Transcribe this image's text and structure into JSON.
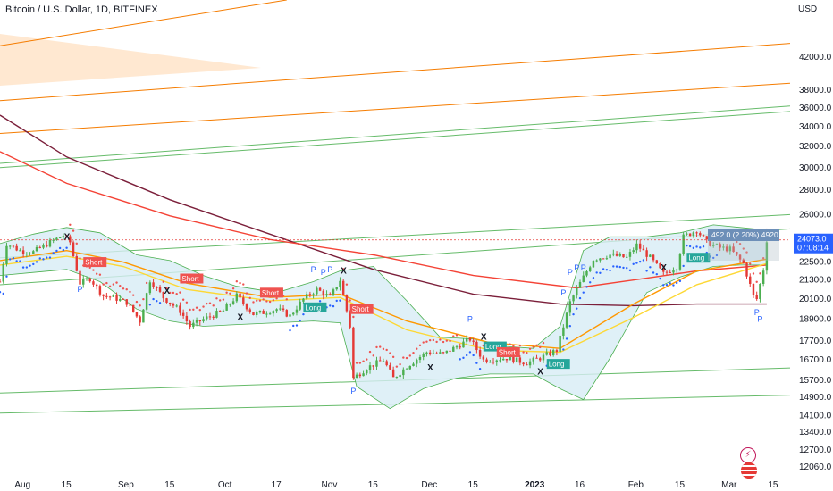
{
  "header": {
    "symbol": "Bitcoin / U.S. Dollar, 1D, BITFINEX",
    "currency": "USD"
  },
  "price_tag": {
    "price": "24073.0",
    "countdown": "07:08:14",
    "color": "#2962ff"
  },
  "stat_box": {
    "text": "492.0 (2.20%) 4920"
  },
  "colors": {
    "up": "#26a69a",
    "up_bright": "#4caf50",
    "down": "#e53935",
    "bb_fill": "#d7ecf5",
    "bb_line": "#4caf50",
    "short_box": "#ef5350",
    "long_box": "#26a69a",
    "psar_down": "#ef5350",
    "psar_up": "#2962ff",
    "ma_dark": "#7b1f3a",
    "ma_red": "#f44336",
    "ma_orange": "#ff9800",
    "ma_yellow": "#fdd835",
    "trend_orange": "#f57c00",
    "trend_green": "#66bb6a"
  },
  "icons": [
    "lightning-icon",
    "us-flag-icon"
  ],
  "chart_data": {
    "type": "candlestick",
    "scale": "log",
    "ylim": [
      11700,
      50000
    ],
    "y_ticks": [
      "42000.0",
      "38000.0",
      "36000.0",
      "34000.0",
      "32000.0",
      "30000.0",
      "28000.0",
      "26000.0",
      "24000.0",
      "22500.0",
      "21300.0",
      "20100.0",
      "18900.0",
      "17700.0",
      "16700.0",
      "15700.0",
      "14900.0",
      "14100.0",
      "13400.0",
      "12700.0",
      "12060.0"
    ],
    "x_ticks": [
      {
        "label": "Aug",
        "date": "2022-08-01"
      },
      {
        "label": "15",
        "date": "2022-08-15"
      },
      {
        "label": "Sep",
        "date": "2022-09-01"
      },
      {
        "label": "15",
        "date": "2022-09-15"
      },
      {
        "label": "Oct",
        "date": "2022-10-01"
      },
      {
        "label": "17",
        "date": "2022-10-17"
      },
      {
        "label": "Nov",
        "date": "2022-11-01"
      },
      {
        "label": "15",
        "date": "2022-11-15"
      },
      {
        "label": "Dec",
        "date": "2022-12-01"
      },
      {
        "label": "15",
        "date": "2022-12-15"
      },
      {
        "label": "2023",
        "date": "2023-01-01",
        "bold": true
      },
      {
        "label": "16",
        "date": "2023-01-16"
      },
      {
        "label": "Feb",
        "date": "2023-02-01"
      },
      {
        "label": "15",
        "date": "2023-02-15"
      },
      {
        "label": "Mar",
        "date": "2023-03-01"
      },
      {
        "label": "15",
        "date": "2023-03-15"
      }
    ],
    "x_range": [
      "2022-07-26",
      "2023-03-20"
    ],
    "close_path": [
      [
        "2022-07-26",
        21200
      ],
      [
        "2022-07-28",
        23800
      ],
      [
        "2022-08-01",
        23300
      ],
      [
        "2022-08-05",
        23200
      ],
      [
        "2022-08-10",
        23900
      ],
      [
        "2022-08-14",
        24400
      ],
      [
        "2022-08-16",
        23900
      ],
      [
        "2022-08-19",
        21100
      ],
      [
        "2022-08-22",
        21400
      ],
      [
        "2022-08-26",
        20300
      ],
      [
        "2022-08-29",
        20200
      ],
      [
        "2022-09-02",
        19900
      ],
      [
        "2022-09-06",
        18800
      ],
      [
        "2022-09-09",
        21300
      ],
      [
        "2022-09-13",
        20200
      ],
      [
        "2022-09-18",
        19400
      ],
      [
        "2022-09-21",
        18500
      ],
      [
        "2022-09-25",
        18900
      ],
      [
        "2022-10-01",
        19400
      ],
      [
        "2022-10-05",
        20300
      ],
      [
        "2022-10-10",
        19200
      ],
      [
        "2022-10-13",
        19300
      ],
      [
        "2022-10-17",
        19500
      ],
      [
        "2022-10-21",
        19100
      ],
      [
        "2022-10-25",
        20100
      ],
      [
        "2022-10-29",
        20700
      ],
      [
        "2022-11-02",
        20200
      ],
      [
        "2022-11-05",
        21300
      ],
      [
        "2022-11-08",
        18500
      ],
      [
        "2022-11-09",
        15800
      ],
      [
        "2022-11-13",
        16300
      ],
      [
        "2022-11-18",
        16700
      ],
      [
        "2022-11-21",
        15800
      ],
      [
        "2022-11-26",
        16500
      ],
      [
        "2022-12-01",
        17100
      ],
      [
        "2022-12-06",
        17000
      ],
      [
        "2022-12-14",
        17800
      ],
      [
        "2022-12-18",
        16700
      ],
      [
        "2022-12-25",
        16800
      ],
      [
        "2022-12-31",
        16550
      ],
      [
        "2023-01-04",
        16800
      ],
      [
        "2023-01-09",
        17200
      ],
      [
        "2023-01-13",
        19900
      ],
      [
        "2023-01-16",
        21100
      ],
      [
        "2023-01-20",
        22700
      ],
      [
        "2023-01-25",
        23000
      ],
      [
        "2023-01-30",
        22800
      ],
      [
        "2023-02-02",
        23700
      ],
      [
        "2023-02-06",
        22800
      ],
      [
        "2023-02-10",
        21700
      ],
      [
        "2023-02-14",
        22200
      ],
      [
        "2023-02-16",
        24300
      ],
      [
        "2023-02-20",
        24800
      ],
      [
        "2023-02-23",
        23900
      ],
      [
        "2023-02-27",
        23500
      ],
      [
        "2023-03-02",
        23400
      ],
      [
        "2023-03-06",
        22400
      ],
      [
        "2023-03-09",
        20300
      ],
      [
        "2023-03-10",
        20100
      ],
      [
        "2023-03-12",
        22000
      ],
      [
        "2023-03-13",
        24073
      ]
    ],
    "bollinger": {
      "upper": [
        [
          "2022-07-26",
          23800
        ],
        [
          "2022-08-05",
          24500
        ],
        [
          "2022-08-15",
          25000
        ],
        [
          "2022-08-25",
          24600
        ],
        [
          "2022-09-05",
          23000
        ],
        [
          "2022-09-15",
          22600
        ],
        [
          "2022-09-25",
          21600
        ],
        [
          "2022-10-05",
          20900
        ],
        [
          "2022-10-17",
          20500
        ],
        [
          "2022-10-28",
          21200
        ],
        [
          "2022-11-05",
          21900
        ],
        [
          "2022-11-15",
          22200
        ],
        [
          "2022-11-25",
          20000
        ],
        [
          "2022-12-05",
          17900
        ],
        [
          "2022-12-15",
          17800
        ],
        [
          "2022-12-25",
          17400
        ],
        [
          "2023-01-02",
          17300
        ],
        [
          "2023-01-10",
          18500
        ],
        [
          "2023-01-17",
          23300
        ],
        [
          "2023-01-25",
          24300
        ],
        [
          "2023-02-05",
          24300
        ],
        [
          "2023-02-15",
          24600
        ],
        [
          "2023-02-25",
          25200
        ],
        [
          "2023-03-05",
          25000
        ],
        [
          "2023-03-13",
          24800
        ]
      ],
      "lower": [
        [
          "2022-07-26",
          21600
        ],
        [
          "2022-08-05",
          21800
        ],
        [
          "2022-08-15",
          22000
        ],
        [
          "2022-08-25",
          21200
        ],
        [
          "2022-09-05",
          19500
        ],
        [
          "2022-09-15",
          18800
        ],
        [
          "2022-09-25",
          18500
        ],
        [
          "2022-10-05",
          18600
        ],
        [
          "2022-10-17",
          18700
        ],
        [
          "2022-10-28",
          18800
        ],
        [
          "2022-11-05",
          18700
        ],
        [
          "2022-11-10",
          15400
        ],
        [
          "2022-11-20",
          14400
        ],
        [
          "2022-11-30",
          15300
        ],
        [
          "2022-12-10",
          15800
        ],
        [
          "2022-12-20",
          16000
        ],
        [
          "2023-01-02",
          16000
        ],
        [
          "2023-01-10",
          15300
        ],
        [
          "2023-01-17",
          14800
        ],
        [
          "2023-01-25",
          16800
        ],
        [
          "2023-02-05",
          20500
        ],
        [
          "2023-02-15",
          21500
        ],
        [
          "2023-02-25",
          22200
        ],
        [
          "2023-03-05",
          22300
        ],
        [
          "2023-03-13",
          22300
        ]
      ]
    },
    "moving_averages": [
      {
        "color_key": "ma_dark",
        "points": [
          [
            "2022-07-26",
            35200
          ],
          [
            "2022-08-15",
            31000
          ],
          [
            "2022-09-15",
            27200
          ],
          [
            "2022-10-15",
            24500
          ],
          [
            "2022-11-15",
            22000
          ],
          [
            "2022-12-15",
            20400
          ],
          [
            "2023-01-10",
            19800
          ],
          [
            "2023-02-01",
            19700
          ],
          [
            "2023-02-20",
            19800
          ],
          [
            "2023-03-13",
            19800
          ]
        ]
      },
      {
        "color_key": "ma_red",
        "points": [
          [
            "2022-07-26",
            31500
          ],
          [
            "2022-08-15",
            28600
          ],
          [
            "2022-09-15",
            25900
          ],
          [
            "2022-10-15",
            24100
          ],
          [
            "2022-11-15",
            23000
          ],
          [
            "2022-12-15",
            21600
          ],
          [
            "2023-01-15",
            20800
          ],
          [
            "2023-02-01",
            21300
          ],
          [
            "2023-02-20",
            21900
          ],
          [
            "2023-03-13",
            22300
          ]
        ]
      },
      {
        "color_key": "ma_orange",
        "points": [
          [
            "2022-07-26",
            22600
          ],
          [
            "2022-08-15",
            23300
          ],
          [
            "2022-09-01",
            22500
          ],
          [
            "2022-09-20",
            21100
          ],
          [
            "2022-10-15",
            20200
          ],
          [
            "2022-11-05",
            20400
          ],
          [
            "2022-11-25",
            18800
          ],
          [
            "2022-12-20",
            17600
          ],
          [
            "2023-01-10",
            17300
          ],
          [
            "2023-02-01",
            19800
          ],
          [
            "2023-02-20",
            21900
          ],
          [
            "2023-03-13",
            22700
          ]
        ]
      },
      {
        "color_key": "ma_yellow",
        "points": [
          [
            "2022-07-26",
            22300
          ],
          [
            "2022-08-15",
            22900
          ],
          [
            "2022-09-01",
            22200
          ],
          [
            "2022-09-20",
            20700
          ],
          [
            "2022-10-15",
            20000
          ],
          [
            "2022-11-05",
            20200
          ],
          [
            "2022-11-25",
            18300
          ],
          [
            "2022-12-20",
            17200
          ],
          [
            "2023-01-10",
            17100
          ],
          [
            "2023-02-01",
            19000
          ],
          [
            "2023-02-20",
            21000
          ],
          [
            "2023-03-13",
            22400
          ]
        ]
      }
    ],
    "trendlines": [
      {
        "color_key": "trend_orange",
        "from": [
          "2022-07-26",
          43500
        ],
        "to": [
          "2022-10-20",
          50000
        ]
      },
      {
        "color_key": "trend_orange",
        "from": [
          "2022-07-26",
          36800
        ],
        "to": [
          "2023-03-20",
          43800
        ]
      },
      {
        "color_key": "trend_orange",
        "from": [
          "2022-07-26",
          33300
        ],
        "to": [
          "2023-03-20",
          38800
        ]
      },
      {
        "color_key": "trend_green",
        "from": [
          "2022-07-26",
          30400
        ],
        "to": [
          "2023-03-20",
          36200
        ]
      },
      {
        "color_key": "trend_green",
        "from": [
          "2022-07-26",
          30000
        ],
        "to": [
          "2023-03-20",
          35600
        ]
      },
      {
        "color_key": "trend_green",
        "from": [
          "2022-07-26",
          22800
        ],
        "to": [
          "2023-03-20",
          26000
        ]
      },
      {
        "color_key": "trend_green",
        "from": [
          "2022-07-26",
          21000
        ],
        "to": [
          "2023-03-20",
          24900
        ]
      },
      {
        "color_key": "trend_green",
        "from": [
          "2022-07-26",
          15100
        ],
        "to": [
          "2023-03-20",
          16300
        ]
      },
      {
        "color_key": "trend_green",
        "from": [
          "2022-07-26",
          14200
        ],
        "to": [
          "2023-03-20",
          15000
        ]
      }
    ],
    "signals": [
      {
        "label": "Short",
        "type": "short",
        "date": "2022-08-20",
        "price": 22500
      },
      {
        "label": "Short",
        "type": "short",
        "date": "2022-09-18",
        "price": 21400
      },
      {
        "label": "Short",
        "type": "short",
        "date": "2022-10-12",
        "price": 20500
      },
      {
        "label": "Long",
        "type": "long",
        "date": "2022-10-25",
        "price": 19600
      },
      {
        "label": "Short",
        "type": "short",
        "date": "2022-11-08",
        "price": 19500
      },
      {
        "label": "Long",
        "type": "long",
        "date": "2022-12-18",
        "price": 17400
      },
      {
        "label": "Short",
        "type": "short",
        "date": "2022-12-22",
        "price": 17100
      },
      {
        "label": "Long",
        "type": "long",
        "date": "2023-01-06",
        "price": 16500
      },
      {
        "label": "Long",
        "type": "long",
        "date": "2023-02-17",
        "price": 22800
      }
    ],
    "x_markers": [
      {
        "label": "X",
        "date": "2022-08-15",
        "price": 24300
      },
      {
        "label": "X",
        "date": "2022-09-14",
        "price": 20600
      },
      {
        "label": "X",
        "date": "2022-10-06",
        "price": 19000
      },
      {
        "label": "X",
        "date": "2022-11-06",
        "price": 21900
      },
      {
        "label": "X",
        "date": "2022-12-02",
        "price": 16300
      },
      {
        "label": "X",
        "date": "2022-12-18",
        "price": 17900
      },
      {
        "label": "X",
        "date": "2023-01-04",
        "price": 16100
      },
      {
        "label": "X",
        "date": "2023-02-10",
        "price": 22100
      },
      {
        "label": "X",
        "date": "2023-02-26",
        "price": 24500
      }
    ],
    "p_markers": [
      {
        "label": "P",
        "date": "2022-08-19",
        "price": 20700
      },
      {
        "label": "P",
        "date": "2022-10-28",
        "price": 22000
      },
      {
        "label": "P",
        "date": "2022-10-31",
        "price": 21800
      },
      {
        "label": "P",
        "date": "2022-11-02",
        "price": 22000
      },
      {
        "label": "P",
        "date": "2022-11-09",
        "price": 15200
      },
      {
        "label": "P",
        "date": "2022-12-14",
        "price": 18900
      },
      {
        "label": "P",
        "date": "2023-01-11",
        "price": 20500
      },
      {
        "label": "P",
        "date": "2023-01-13",
        "price": 21800
      },
      {
        "label": "P",
        "date": "2023-01-15",
        "price": 22100
      },
      {
        "label": "P",
        "date": "2023-01-17",
        "price": 22100
      },
      {
        "label": "P",
        "date": "2023-03-10",
        "price": 19300
      },
      {
        "label": "P",
        "date": "2023-03-11",
        "price": 18900
      }
    ]
  }
}
